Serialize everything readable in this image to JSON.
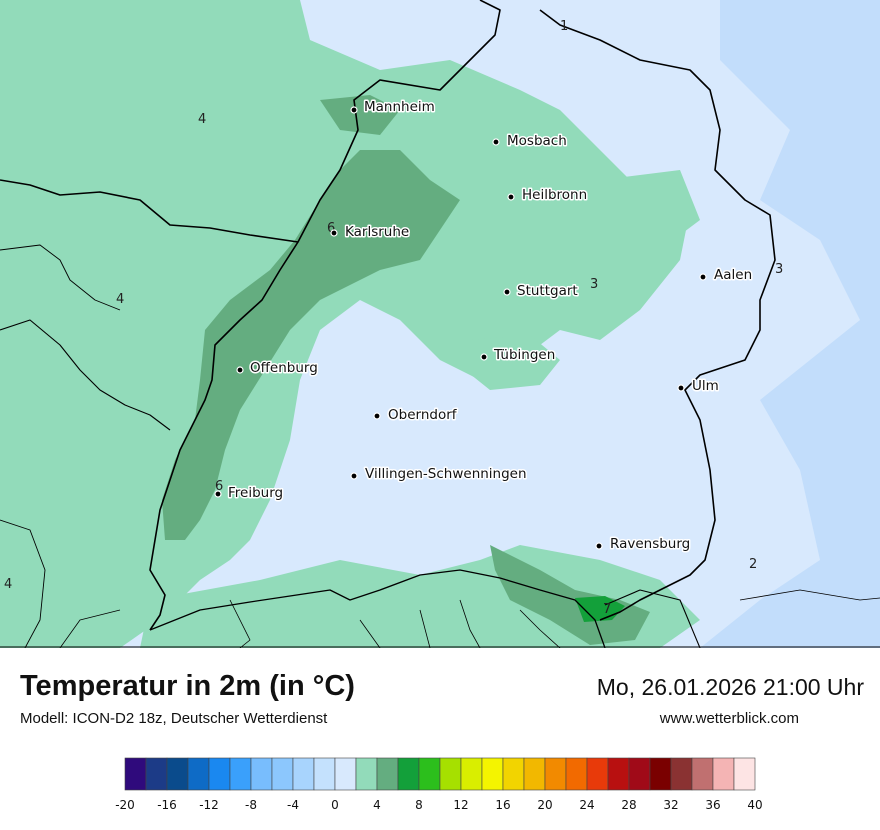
{
  "map": {
    "colors": {
      "temp_0_2": "#d8e9fd",
      "temp_2_4": "#c2ddfb",
      "temp_4_6": "#92dbba",
      "temp_6_8": "#64ad80",
      "temp_8_10": "#13a03a",
      "border": "#000000"
    },
    "cities": [
      {
        "name": "Mannheim"
      },
      {
        "name": "Mosbach"
      },
      {
        "name": "Heilbronn"
      },
      {
        "name": "Karlsruhe"
      },
      {
        "name": "Aalen"
      },
      {
        "name": "Stuttgart"
      },
      {
        "name": "Tübingen"
      },
      {
        "name": "Offenburg"
      },
      {
        "name": "Ulm"
      },
      {
        "name": "Oberndorf"
      },
      {
        "name": "Villingen-Schwenningen"
      },
      {
        "name": "Freiburg"
      },
      {
        "name": "Ravensburg"
      }
    ],
    "isotherm_labels": [
      "1",
      "4",
      "4",
      "6",
      "3",
      "3",
      "6",
      "2",
      "4",
      "7"
    ]
  },
  "footer": {
    "title": "Temperatur in 2m (in °C)",
    "model": "Modell: ICON-D2 18z, Deutscher Wetterdienst",
    "datetime": "Mo, 26.01.2026 21:00 Uhr",
    "website": "www.wetterblick.com"
  },
  "legend": {
    "ticks": [
      "-20",
      "-16",
      "-12",
      "-8",
      "-4",
      "0",
      "4",
      "8",
      "12",
      "16",
      "20",
      "24",
      "28",
      "32",
      "36",
      "40"
    ],
    "colors": [
      "#2f0a7c",
      "#1c3b87",
      "#0a4b8c",
      "#0e6bc6",
      "#1a88f0",
      "#3aa0fb",
      "#78bdfd",
      "#8cc7fd",
      "#a8d4fd",
      "#c4e1fd",
      "#d8e9fd",
      "#92dbba",
      "#64ad80",
      "#13a03a",
      "#2cbf1c",
      "#a6e000",
      "#d9ee00",
      "#f4f400",
      "#f2d400",
      "#f2b800",
      "#f28a00",
      "#f26a00",
      "#e83a0a",
      "#b81010",
      "#a00a18",
      "#7a0000",
      "#8a3232",
      "#c07070",
      "#f4b4b4",
      "#fde4e4"
    ]
  }
}
